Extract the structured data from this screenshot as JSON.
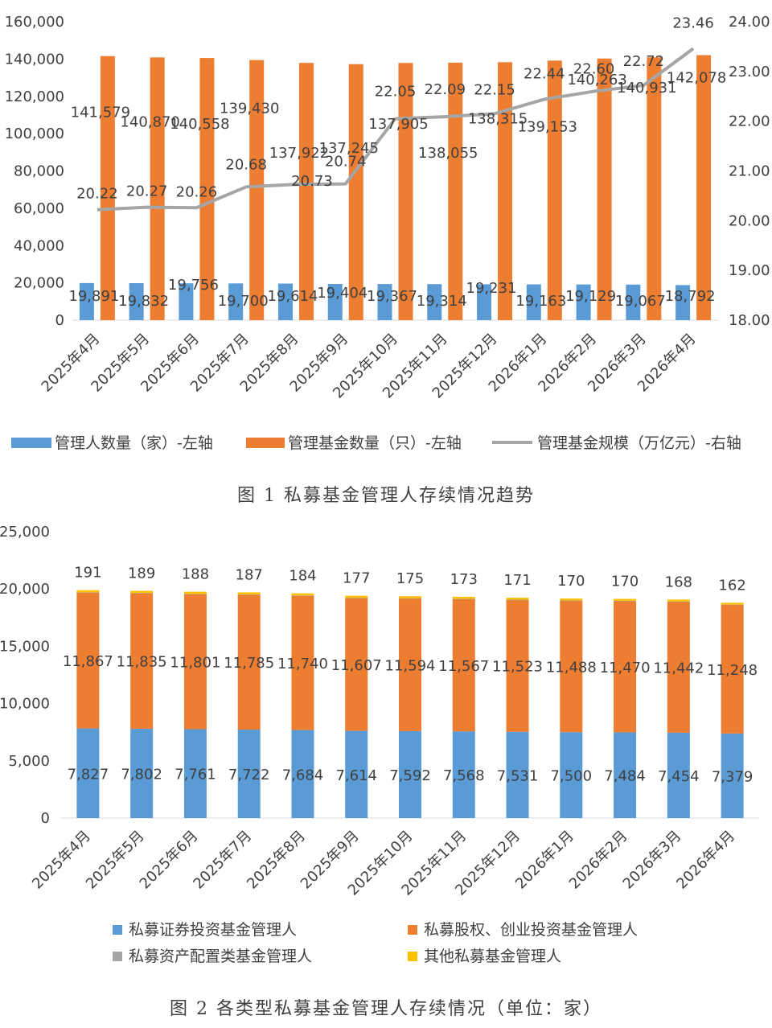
{
  "captions": {
    "fig1": "图 1  私募基金管理人存续情况趋势",
    "fig2": "图 2  各类型私募基金管理人存续情况（单位：家）"
  },
  "colors": {
    "blue": "#5B9BD5",
    "orange": "#ED7D31",
    "gray": "#A5A5A5",
    "yellow": "#FFC000",
    "axis": "#D9D9D9",
    "text": "#404040"
  },
  "chart_data": [
    {
      "type": "bar",
      "categories": [
        "2025年4月",
        "2025年5月",
        "2025年6月",
        "2025年7月",
        "2025年8月",
        "2025年9月",
        "2025年10月",
        "2025年11月",
        "2025年12月",
        "2026年1月",
        "2026年2月",
        "2026年3月",
        "2026年4月"
      ],
      "series": [
        {
          "name": "管理人数量（家）-左轴",
          "type": "bar",
          "axis": "left",
          "values": [
            19891,
            19832,
            19756,
            19700,
            19614,
            19404,
            19367,
            19314,
            19231,
            19163,
            19129,
            19067,
            18792
          ],
          "labels": [
            "19,891",
            "19,832",
            "19,756",
            "19,700",
            "19,614",
            "19,404",
            "19,367",
            "19,314",
            "19,231",
            "19,163",
            "19,129",
            "19,067",
            "18,792"
          ]
        },
        {
          "name": "管理基金数量（只）-左轴",
          "type": "bar",
          "axis": "left",
          "values": [
            141579,
            140870,
            140558,
            139430,
            137922,
            137245,
            137905,
            138055,
            138315,
            139153,
            140263,
            140931,
            142078
          ],
          "labels": [
            "141,579",
            "140,870",
            "140,558",
            "139,430",
            "137,922",
            "137,245",
            "137,905",
            "138,055",
            "138,315",
            "139,153",
            "140,263",
            "140,931",
            "142,078"
          ]
        },
        {
          "name": "管理基金规模（万亿元）-右轴",
          "type": "line",
          "axis": "right",
          "values": [
            20.22,
            20.27,
            20.26,
            20.68,
            20.73,
            20.74,
            22.05,
            22.09,
            22.15,
            22.44,
            22.6,
            22.72,
            23.46
          ],
          "labels": [
            "20.22",
            "20.27",
            "20.26",
            "20.68",
            "20.73",
            "20.74",
            "22.05",
            "22.09",
            "22.15",
            "22.44",
            "22.60",
            "22.72",
            "23.46"
          ]
        }
      ],
      "ylim": [
        0,
        160000
      ],
      "yticks": [
        "0",
        "20,000",
        "40,000",
        "60,000",
        "80,000",
        "100,000",
        "120,000",
        "140,000",
        "160,000"
      ],
      "y2lim": [
        18,
        24
      ],
      "y2ticks": [
        "18.00",
        "19.00",
        "20.00",
        "21.00",
        "22.00",
        "23.00",
        "24.00"
      ],
      "legend": "bottom",
      "grid": false
    },
    {
      "type": "bar",
      "stacked": true,
      "categories": [
        "2025年4月",
        "2025年5月",
        "2025年6月",
        "2025年7月",
        "2025年8月",
        "2025年9月",
        "2025年10月",
        "2025年11月",
        "2025年12月",
        "2026年1月",
        "2026年2月",
        "2026年3月",
        "2026年4月"
      ],
      "series": [
        {
          "name": "私募证券投资基金管理人",
          "values": [
            7827,
            7802,
            7761,
            7722,
            7684,
            7614,
            7592,
            7568,
            7531,
            7500,
            7484,
            7454,
            7379
          ],
          "labels": [
            "7,827",
            "7,802",
            "7,761",
            "7,722",
            "7,684",
            "7,614",
            "7,592",
            "7,568",
            "7,531",
            "7,500",
            "7,484",
            "7,454",
            "7,379"
          ]
        },
        {
          "name": "私募股权、创业投资基金管理人",
          "values": [
            11867,
            11835,
            11801,
            11785,
            11740,
            11607,
            11594,
            11567,
            11523,
            11488,
            11470,
            11442,
            11248
          ],
          "labels": [
            "11,867",
            "11,835",
            "11,801",
            "11,785",
            "11,740",
            "11,607",
            "11,594",
            "11,567",
            "11,523",
            "11,488",
            "11,470",
            "11,442",
            "11,248"
          ]
        },
        {
          "name": "私募资产配置类基金管理人",
          "values": [
            9,
            9,
            9,
            9,
            9,
            9,
            9,
            9,
            9,
            9,
            9,
            9,
            9
          ]
        },
        {
          "name": "其他私募基金管理人",
          "values": [
            191,
            189,
            188,
            187,
            184,
            177,
            175,
            173,
            171,
            170,
            170,
            168,
            162
          ],
          "labels": [
            "191",
            "189",
            "188",
            "187",
            "184",
            "177",
            "175",
            "173",
            "171",
            "170",
            "170",
            "168",
            "162"
          ]
        }
      ],
      "ylim": [
        0,
        25000
      ],
      "yticks": [
        "0",
        "5,000",
        "10,000",
        "15,000",
        "20,000",
        "25,000"
      ],
      "legend": "bottom",
      "grid": false
    }
  ]
}
